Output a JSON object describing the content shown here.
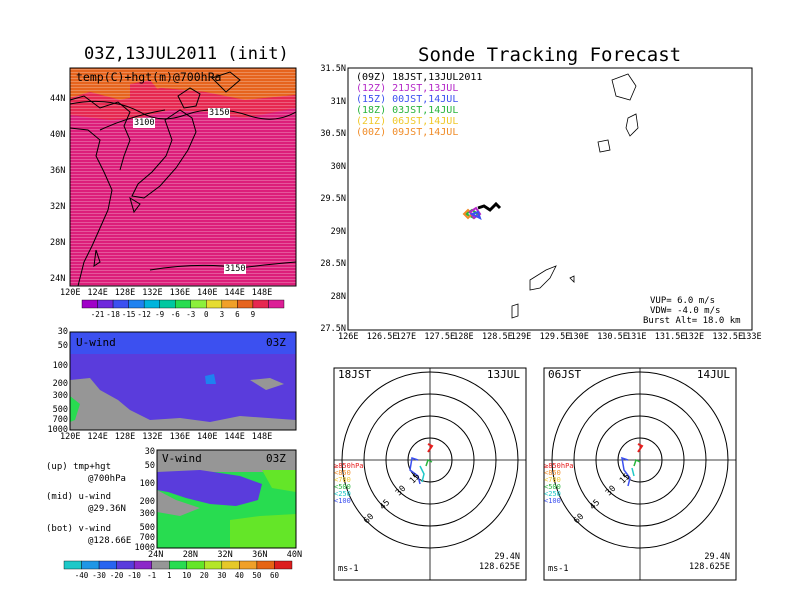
{
  "main_title": "Sonde Tracking Forecast",
  "left_panel": {
    "title": "03Z,13JUL2011 (init)",
    "map_label": "temp(C)+hgt(m)@700hPa",
    "contour_labels": [
      "3100",
      "3150",
      "3150"
    ],
    "lat_ticks": [
      "44N",
      "40N",
      "36N",
      "32N",
      "28N",
      "24N"
    ],
    "lon_ticks": [
      "120E",
      "124E",
      "128E",
      "132E",
      "136E",
      "140E",
      "144E",
      "148E"
    ],
    "colorbar_labels": [
      "-21",
      "-18",
      "-15",
      "-12",
      "-9",
      "-6",
      "-3",
      "0",
      "3",
      "6",
      "9"
    ],
    "colorbar_colors": [
      "#a000c8",
      "#6e28dc",
      "#3c50f0",
      "#1e82f0",
      "#00b4dc",
      "#00c8a0",
      "#28dc50",
      "#8cf03c",
      "#e6dc32",
      "#f0a028",
      "#e6641e",
      "#e62850",
      "#dc1e96"
    ]
  },
  "uwind_panel": {
    "label": "U-wind",
    "time": "03Z",
    "p_ticks": [
      "30",
      "50",
      "100",
      "200",
      "300",
      "500",
      "700",
      "1000"
    ],
    "lon_ticks": [
      "120E",
      "124E",
      "128E",
      "132E",
      "136E",
      "140E",
      "144E",
      "148E"
    ]
  },
  "vwind_panel": {
    "label": "V-wind",
    "time": "03Z",
    "p_ticks": [
      "30",
      "50",
      "100",
      "200",
      "300",
      "500",
      "700",
      "1000"
    ],
    "lat_ticks": [
      "24N",
      "28N",
      "32N",
      "36N",
      "40N"
    ]
  },
  "notes": {
    "up": "(up) tmp+hgt",
    "up_sub": "@700hPa",
    "mid": "(mid) u-wind",
    "mid_sub": "@29.36N",
    "bot": "(bot) v-wind",
    "bot_sub": "@128.66E"
  },
  "wind_colorbar": {
    "labels": [
      "-40",
      "-30",
      "-20",
      "-10",
      "-1",
      "1",
      "10",
      "20",
      "30",
      "40",
      "50",
      "60"
    ],
    "colors": [
      "#1ec8c8",
      "#1e96e6",
      "#2864f0",
      "#5a3cdc",
      "#8c28c8",
      "#969696",
      "#28dc50",
      "#64e628",
      "#b4e628",
      "#e6c828",
      "#f0a028",
      "#e66414",
      "#dc1e1e"
    ]
  },
  "track_map": {
    "legend": [
      {
        "code": "(09Z)",
        "label": "18JST,13JUL2011",
        "color": "#000000"
      },
      {
        "code": "(12Z)",
        "label": "21JST,13JUL",
        "color": "#b428c8"
      },
      {
        "code": "(15Z)",
        "label": "00JST,14JUL",
        "color": "#3c50f0"
      },
      {
        "code": "(18Z)",
        "label": "03JST,14JUL",
        "color": "#28b43c"
      },
      {
        "code": "(21Z)",
        "label": "06JST,14JUL",
        "color": "#f0c828"
      },
      {
        "code": "(00Z)",
        "label": "09JST,14JUL",
        "color": "#f08c28"
      }
    ],
    "lat_ticks": [
      "31.5N",
      "31N",
      "30.5N",
      "30N",
      "29.5N",
      "29N",
      "28.5N",
      "28N",
      "27.5N"
    ],
    "lon_ticks": [
      "126E",
      "126.5E",
      "127E",
      "127.5E",
      "128E",
      "128.5E",
      "129E",
      "129.5E",
      "130E",
      "130.5E",
      "131E",
      "131.5E",
      "132E",
      "132.5E",
      "133E"
    ],
    "vup": "VUP= 6.0 m/s",
    "vdw": "VDW= -4.0 m/s",
    "burst": "Burst Alt= 18.0 km"
  },
  "hodographs": [
    {
      "jst": "18JST",
      "date": "13JUL",
      "lat": "29.4N",
      "lon": "128.625E",
      "unit": "ms-1",
      "ring_labels": [
        "15",
        "30",
        "45",
        "60"
      ],
      "levels": [
        {
          "text": "≥850hPa",
          "color": "#e61e1e"
        },
        {
          "text": "<850",
          "color": "#f08c28"
        },
        {
          "text": "<700",
          "color": "#f0c828"
        },
        {
          "text": "<500",
          "color": "#28b43c"
        },
        {
          "text": "<250",
          "color": "#1ec8c8"
        },
        {
          "text": "<100",
          "color": "#3c50f0"
        }
      ]
    },
    {
      "jst": "06JST",
      "date": "14JUL",
      "lat": "29.4N",
      "lon": "128.625E",
      "unit": "ms-1",
      "ring_labels": [
        "15",
        "30",
        "45",
        "60"
      ],
      "levels": [
        {
          "text": "≥850hPa",
          "color": "#e61e1e"
        },
        {
          "text": "<850",
          "color": "#f08c28"
        },
        {
          "text": "<700",
          "color": "#f0c828"
        },
        {
          "text": "<500",
          "color": "#28b43c"
        },
        {
          "text": "<250",
          "color": "#1ec8c8"
        },
        {
          "text": "<100",
          "color": "#3c50f0"
        }
      ]
    }
  ]
}
